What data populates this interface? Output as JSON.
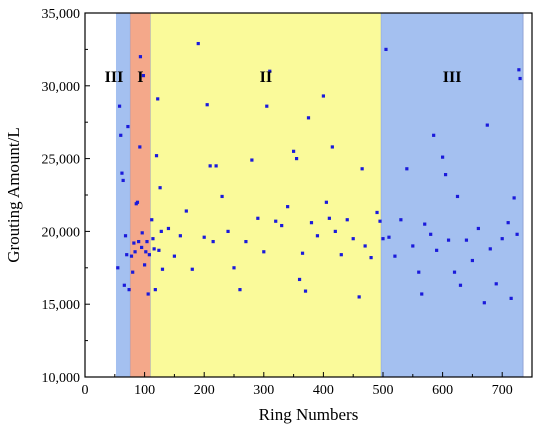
{
  "chart_data": {
    "type": "scatter",
    "title": "",
    "xlabel": "Ring Numbers",
    "ylabel": "Grouting Amount/L",
    "xlim": [
      0,
      750
    ],
    "ylim": [
      10000,
      35000
    ],
    "xticks": [
      0,
      100,
      200,
      300,
      400,
      500,
      600,
      700
    ],
    "yticks": [
      10000,
      15000,
      20000,
      25000,
      30000,
      35000
    ],
    "xtick_labels": [
      "0",
      "100",
      "200",
      "300",
      "400",
      "500",
      "600",
      "700"
    ],
    "ytick_labels": [
      "10,000",
      "15,000",
      "20,000",
      "25,000",
      "30,000",
      "35,000"
    ],
    "grid": false,
    "legend": "none",
    "marker_color": "#1a1adb",
    "regions": [
      {
        "label": "III",
        "x_start": 52,
        "x_end": 76,
        "color": "#a4c0f0"
      },
      {
        "label": "I",
        "x_start": 76,
        "x_end": 110,
        "color": "#f4a88a"
      },
      {
        "label": "II",
        "x_start": 110,
        "x_end": 497,
        "color": "#fafa9a"
      },
      {
        "label": "III",
        "x_start": 497,
        "x_end": 735,
        "color": "#a4c0f0"
      }
    ],
    "series": [
      {
        "points": [
          [
            55,
            17500
          ],
          [
            58,
            28600
          ],
          [
            60,
            26600
          ],
          [
            62,
            24000
          ],
          [
            64,
            23500
          ],
          [
            66,
            16300
          ],
          [
            68,
            19700
          ],
          [
            70,
            18400
          ],
          [
            72,
            27200
          ],
          [
            74,
            16000
          ],
          [
            78,
            18300
          ],
          [
            80,
            17200
          ],
          [
            82,
            19200
          ],
          [
            84,
            18600
          ],
          [
            86,
            21900
          ],
          [
            88,
            22000
          ],
          [
            90,
            19300
          ],
          [
            92,
            25800
          ],
          [
            93,
            32000
          ],
          [
            95,
            18900
          ],
          [
            96,
            19900
          ],
          [
            98,
            30700
          ],
          [
            100,
            17700
          ],
          [
            102,
            18600
          ],
          [
            104,
            19300
          ],
          [
            106,
            15700
          ],
          [
            108,
            18400
          ],
          [
            112,
            20800
          ],
          [
            114,
            19500
          ],
          [
            116,
            18800
          ],
          [
            118,
            16000
          ],
          [
            120,
            25200
          ],
          [
            122,
            29100
          ],
          [
            124,
            18700
          ],
          [
            126,
            23000
          ],
          [
            128,
            20000
          ],
          [
            130,
            17400
          ],
          [
            140,
            20200
          ],
          [
            150,
            18300
          ],
          [
            160,
            19700
          ],
          [
            170,
            21400
          ],
          [
            180,
            17400
          ],
          [
            190,
            32900
          ],
          [
            200,
            19600
          ],
          [
            205,
            28700
          ],
          [
            210,
            24500
          ],
          [
            215,
            19300
          ],
          [
            220,
            24500
          ],
          [
            230,
            22400
          ],
          [
            240,
            20000
          ],
          [
            250,
            17500
          ],
          [
            260,
            16000
          ],
          [
            270,
            19300
          ],
          [
            280,
            24900
          ],
          [
            290,
            20900
          ],
          [
            300,
            18600
          ],
          [
            305,
            28600
          ],
          [
            310,
            31000
          ],
          [
            320,
            20700
          ],
          [
            330,
            20400
          ],
          [
            340,
            21700
          ],
          [
            350,
            25500
          ],
          [
            355,
            25000
          ],
          [
            360,
            16700
          ],
          [
            365,
            18500
          ],
          [
            370,
            15900
          ],
          [
            375,
            27800
          ],
          [
            380,
            20600
          ],
          [
            390,
            19700
          ],
          [
            400,
            29300
          ],
          [
            405,
            22000
          ],
          [
            410,
            20900
          ],
          [
            415,
            25800
          ],
          [
            420,
            20000
          ],
          [
            430,
            18400
          ],
          [
            440,
            20800
          ],
          [
            450,
            19500
          ],
          [
            460,
            15500
          ],
          [
            465,
            24300
          ],
          [
            470,
            19000
          ],
          [
            480,
            18200
          ],
          [
            490,
            21300
          ],
          [
            495,
            20700
          ],
          [
            500,
            19500
          ],
          [
            505,
            32500
          ],
          [
            510,
            19600
          ],
          [
            520,
            18300
          ],
          [
            530,
            20800
          ],
          [
            540,
            24300
          ],
          [
            550,
            19000
          ],
          [
            560,
            17200
          ],
          [
            565,
            15700
          ],
          [
            570,
            20500
          ],
          [
            580,
            19800
          ],
          [
            585,
            26600
          ],
          [
            590,
            18700
          ],
          [
            600,
            25100
          ],
          [
            605,
            23900
          ],
          [
            610,
            19400
          ],
          [
            620,
            17200
          ],
          [
            625,
            22400
          ],
          [
            630,
            16300
          ],
          [
            640,
            19400
          ],
          [
            650,
            18000
          ],
          [
            660,
            20200
          ],
          [
            670,
            15100
          ],
          [
            675,
            27300
          ],
          [
            680,
            18800
          ],
          [
            690,
            16400
          ],
          [
            700,
            19500
          ],
          [
            710,
            20600
          ],
          [
            715,
            15400
          ],
          [
            720,
            22300
          ],
          [
            725,
            19800
          ],
          [
            728,
            31100
          ],
          [
            730,
            30500
          ]
        ]
      }
    ]
  }
}
